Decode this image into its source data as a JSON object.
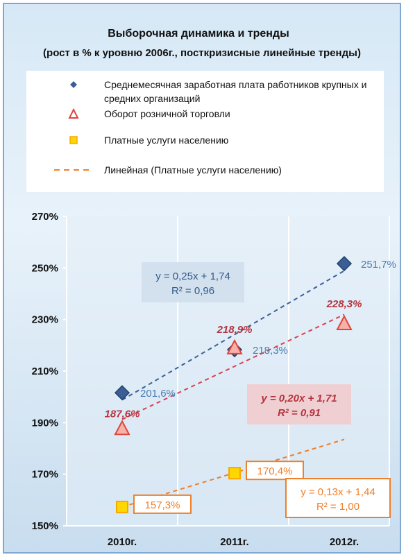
{
  "chart_data": {
    "type": "scatter",
    "title": "Выборочная динамика и тренды",
    "subtitle": "(рост  в % к уровню 2006г., посткризисные линейные тренды)",
    "categories": [
      "2010г.",
      "2011г.",
      "2012г."
    ],
    "y_ticks": [
      "150%",
      "170%",
      "190%",
      "210%",
      "230%",
      "250%",
      "270%"
    ],
    "ylim": [
      150,
      270
    ],
    "grid": "vertical",
    "legend_position": "top",
    "series": [
      {
        "name": "Среднемесячная заработная  плата работников крупных и средних организаций",
        "marker": "diamond",
        "color": "#3b5f95",
        "values": [
          201.6,
          218.3,
          251.7
        ],
        "labels": [
          "201,6%",
          "218,3%",
          "251,7%"
        ],
        "trend": {
          "slope": 0.25,
          "intercept": 1.74,
          "equation": "y = 0,25x + 1,74",
          "r2": "R² = 0,96"
        }
      },
      {
        "name": "Оборот розничной торговли",
        "marker": "triangle",
        "color": "#e0453c",
        "values": [
          187.6,
          218.9,
          228.3
        ],
        "labels": [
          "187,6%",
          "218,9%",
          "228,3%"
        ],
        "trend": {
          "slope": 0.2,
          "intercept": 1.71,
          "equation": "y = 0,20x + 1,71",
          "r2": "R² = 0,91"
        }
      },
      {
        "name": "Платные услуги населению",
        "marker": "square",
        "color": "#f7a800",
        "values": [
          157.3,
          170.4,
          183.5
        ],
        "labels": [
          "157,3%",
          "170,4%",
          ""
        ],
        "trend": {
          "slope": 0.13,
          "intercept": 1.44,
          "equation": "y = 0,13x + 1,44",
          "r2": "R² = 1,00"
        }
      }
    ],
    "trend_legend": "Линейная (Платные услуги населению)"
  }
}
